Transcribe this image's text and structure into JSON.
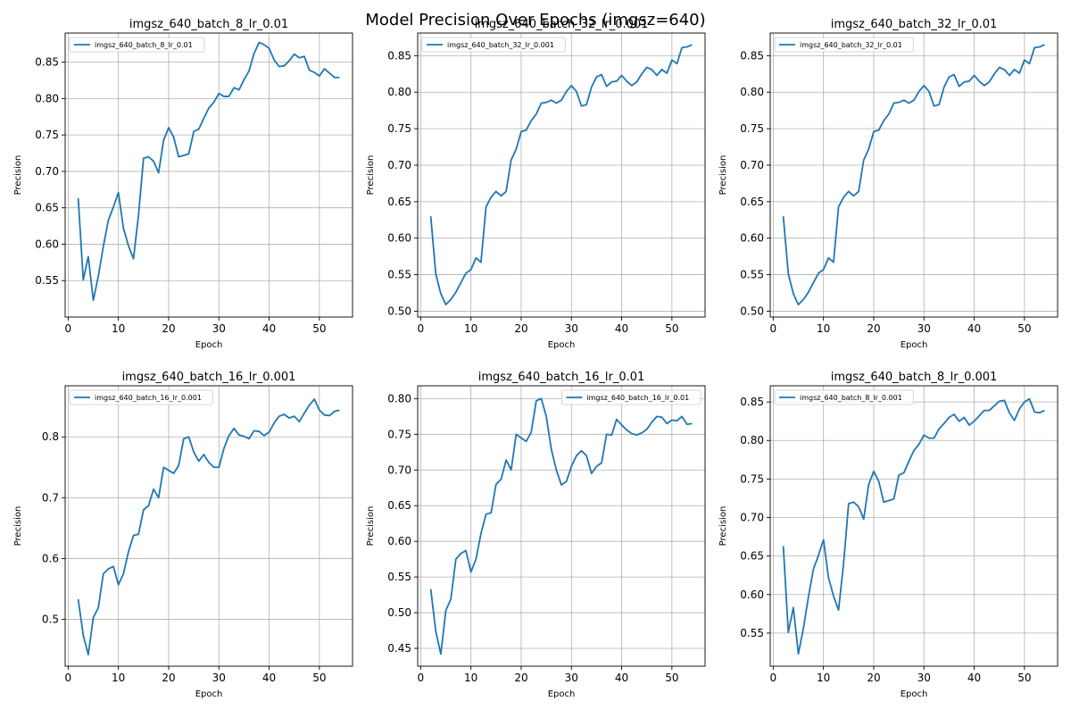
{
  "figure": {
    "suptitle": "Model Precision Over Epochs (imgsz=640)"
  },
  "colors": {
    "line": "#1f77b4",
    "grid": "#b0b0b0",
    "axis": "#000000"
  },
  "chart_data": [
    {
      "type": "line",
      "title": "imgsz_640_batch_8_lr_0.01",
      "xlabel": "Epoch",
      "ylabel": "Precision",
      "xlim": [
        -0.6,
        56.6
      ],
      "ylim": [
        0.5,
        0.89
      ],
      "xticks": [
        0,
        10,
        20,
        30,
        40,
        50
      ],
      "yticks": [
        0.55,
        0.6,
        0.65,
        0.7,
        0.75,
        0.8,
        0.85
      ],
      "ytick_labels": [
        "0.55",
        "0.60",
        "0.65",
        "0.70",
        "0.75",
        "0.80",
        "0.85"
      ],
      "grid": true,
      "legend_position": "top-left",
      "series": [
        {
          "name": "imgsz_640_batch_8_lr_0.01",
          "x": [
            2,
            3,
            4,
            5,
            6,
            7,
            8,
            9,
            10,
            11,
            12,
            13,
            14,
            15,
            16,
            17,
            18,
            19,
            20,
            21,
            22,
            23,
            24,
            25,
            26,
            27,
            28,
            29,
            30,
            31,
            32,
            33,
            34,
            35,
            36,
            37,
            38,
            39,
            40,
            41,
            42,
            43,
            44,
            45,
            46,
            47,
            48,
            49,
            50,
            51,
            52,
            53,
            54
          ],
          "y": [
            0.663,
            0.551,
            0.583,
            0.523,
            0.556,
            0.597,
            0.633,
            0.651,
            0.671,
            0.622,
            0.598,
            0.58,
            0.64,
            0.718,
            0.72,
            0.714,
            0.698,
            0.743,
            0.76,
            0.747,
            0.72,
            0.722,
            0.724,
            0.755,
            0.758,
            0.773,
            0.787,
            0.795,
            0.807,
            0.803,
            0.803,
            0.815,
            0.812,
            0.826,
            0.838,
            0.862,
            0.877,
            0.874,
            0.869,
            0.853,
            0.844,
            0.845,
            0.852,
            0.861,
            0.856,
            0.858,
            0.839,
            0.836,
            0.831,
            0.841,
            0.835,
            0.829,
            0.829
          ]
        }
      ]
    },
    {
      "type": "line",
      "title": "imgsz_640_batch_32_lr_0.001",
      "xlabel": "Epoch",
      "ylabel": "Precision",
      "xlim": [
        -0.6,
        56.6
      ],
      "ylim": [
        0.492,
        0.881
      ],
      "xticks": [
        0,
        10,
        20,
        30,
        40,
        50
      ],
      "yticks": [
        0.5,
        0.55,
        0.6,
        0.65,
        0.7,
        0.75,
        0.8,
        0.85
      ],
      "ytick_labels": [
        "0.50",
        "0.55",
        "0.60",
        "0.65",
        "0.70",
        "0.75",
        "0.80",
        "0.85"
      ],
      "grid": true,
      "legend_position": "top-left",
      "series": [
        {
          "name": "imgsz_640_batch_32_lr_0.001",
          "x": [
            2,
            3,
            4,
            5,
            6,
            7,
            8,
            9,
            10,
            11,
            12,
            13,
            14,
            15,
            16,
            17,
            18,
            19,
            20,
            21,
            22,
            23,
            24,
            25,
            26,
            27,
            28,
            29,
            30,
            31,
            32,
            33,
            34,
            35,
            36,
            37,
            38,
            39,
            40,
            41,
            42,
            43,
            44,
            45,
            46,
            47,
            48,
            49,
            50,
            51,
            52,
            53,
            54
          ],
          "y": [
            0.63,
            0.551,
            0.524,
            0.509,
            0.516,
            0.526,
            0.539,
            0.552,
            0.557,
            0.573,
            0.567,
            0.643,
            0.656,
            0.664,
            0.658,
            0.664,
            0.707,
            0.722,
            0.746,
            0.748,
            0.761,
            0.77,
            0.785,
            0.786,
            0.789,
            0.785,
            0.789,
            0.801,
            0.809,
            0.801,
            0.781,
            0.783,
            0.807,
            0.821,
            0.824,
            0.808,
            0.814,
            0.815,
            0.823,
            0.815,
            0.809,
            0.814,
            0.825,
            0.834,
            0.831,
            0.823,
            0.831,
            0.826,
            0.844,
            0.839,
            0.861,
            0.862,
            0.865
          ]
        }
      ]
    },
    {
      "type": "line",
      "title": "imgsz_640_batch_32_lr_0.01",
      "xlabel": "Epoch",
      "ylabel": "Precision",
      "xlim": [
        -0.6,
        56.6
      ],
      "ylim": [
        0.492,
        0.881
      ],
      "xticks": [
        0,
        10,
        20,
        30,
        40,
        50
      ],
      "yticks": [
        0.5,
        0.55,
        0.6,
        0.65,
        0.7,
        0.75,
        0.8,
        0.85
      ],
      "ytick_labels": [
        "0.50",
        "0.55",
        "0.60",
        "0.65",
        "0.70",
        "0.75",
        "0.80",
        "0.85"
      ],
      "grid": true,
      "legend_position": "top-left",
      "series": [
        {
          "name": "imgsz_640_batch_32_lr_0.01",
          "x": [
            2,
            3,
            4,
            5,
            6,
            7,
            8,
            9,
            10,
            11,
            12,
            13,
            14,
            15,
            16,
            17,
            18,
            19,
            20,
            21,
            22,
            23,
            24,
            25,
            26,
            27,
            28,
            29,
            30,
            31,
            32,
            33,
            34,
            35,
            36,
            37,
            38,
            39,
            40,
            41,
            42,
            43,
            44,
            45,
            46,
            47,
            48,
            49,
            50,
            51,
            52,
            53,
            54
          ],
          "y": [
            0.63,
            0.551,
            0.524,
            0.509,
            0.516,
            0.526,
            0.539,
            0.552,
            0.557,
            0.573,
            0.567,
            0.643,
            0.656,
            0.664,
            0.658,
            0.664,
            0.707,
            0.722,
            0.746,
            0.748,
            0.761,
            0.77,
            0.785,
            0.786,
            0.789,
            0.785,
            0.789,
            0.801,
            0.809,
            0.801,
            0.781,
            0.783,
            0.807,
            0.821,
            0.824,
            0.808,
            0.814,
            0.815,
            0.823,
            0.815,
            0.809,
            0.814,
            0.825,
            0.834,
            0.831,
            0.823,
            0.831,
            0.826,
            0.844,
            0.839,
            0.861,
            0.862,
            0.865
          ]
        }
      ]
    },
    {
      "type": "line",
      "title": "imgsz_640_batch_16_lr_0.001",
      "xlabel": "Epoch",
      "ylabel": "Precision",
      "xlim": [
        -0.6,
        56.6
      ],
      "ylim": [
        0.423,
        0.884
      ],
      "xticks": [
        0,
        10,
        20,
        30,
        40,
        50
      ],
      "yticks": [
        0.5,
        0.6,
        0.7,
        0.8
      ],
      "ytick_labels": [
        "0.5",
        "0.6",
        "0.7",
        "0.8"
      ],
      "grid": true,
      "legend_position": "top-left",
      "series": [
        {
          "name": "imgsz_640_batch_16_lr_0.001",
          "x": [
            2,
            3,
            4,
            5,
            6,
            7,
            8,
            9,
            10,
            11,
            12,
            13,
            14,
            15,
            16,
            17,
            18,
            19,
            20,
            21,
            22,
            23,
            24,
            25,
            26,
            27,
            28,
            29,
            30,
            31,
            32,
            33,
            34,
            35,
            36,
            37,
            38,
            39,
            40,
            41,
            42,
            43,
            44,
            45,
            46,
            47,
            48,
            49,
            50,
            51,
            52,
            53,
            54
          ],
          "y": [
            0.533,
            0.474,
            0.442,
            0.503,
            0.519,
            0.575,
            0.583,
            0.587,
            0.557,
            0.575,
            0.611,
            0.638,
            0.64,
            0.68,
            0.687,
            0.714,
            0.7,
            0.75,
            0.745,
            0.74,
            0.753,
            0.797,
            0.8,
            0.775,
            0.76,
            0.771,
            0.758,
            0.75,
            0.75,
            0.781,
            0.802,
            0.814,
            0.803,
            0.801,
            0.797,
            0.81,
            0.809,
            0.802,
            0.808,
            0.823,
            0.834,
            0.837,
            0.831,
            0.834,
            0.825,
            0.839,
            0.852,
            0.862,
            0.844,
            0.836,
            0.835,
            0.842,
            0.844
          ]
        }
      ]
    },
    {
      "type": "line",
      "title": "imgsz_640_batch_16_lr_0.01",
      "xlabel": "Epoch",
      "ylabel": "Precision",
      "xlim": [
        -0.6,
        56.6
      ],
      "ylim": [
        0.425,
        0.818
      ],
      "xticks": [
        0,
        10,
        20,
        30,
        40,
        50
      ],
      "yticks": [
        0.45,
        0.5,
        0.55,
        0.6,
        0.65,
        0.7,
        0.75,
        0.8
      ],
      "ytick_labels": [
        "0.45",
        "0.50",
        "0.55",
        "0.60",
        "0.65",
        "0.70",
        "0.75",
        "0.80"
      ],
      "grid": true,
      "legend_position": "top-right",
      "series": [
        {
          "name": "imgsz_640_batch_16_lr_0.01",
          "x": [
            2,
            3,
            4,
            5,
            6,
            7,
            8,
            9,
            10,
            11,
            12,
            13,
            14,
            15,
            16,
            17,
            18,
            19,
            20,
            21,
            22,
            23,
            24,
            25,
            26,
            27,
            28,
            29,
            30,
            31,
            32,
            33,
            34,
            35,
            36,
            37,
            38,
            39,
            40,
            41,
            42,
            43,
            44,
            45,
            46,
            47,
            48,
            49,
            50,
            51,
            52,
            53,
            54
          ],
          "y": [
            0.533,
            0.474,
            0.442,
            0.503,
            0.519,
            0.575,
            0.583,
            0.587,
            0.557,
            0.575,
            0.611,
            0.638,
            0.64,
            0.68,
            0.687,
            0.714,
            0.7,
            0.75,
            0.745,
            0.74,
            0.753,
            0.797,
            0.8,
            0.775,
            0.729,
            0.7,
            0.679,
            0.684,
            0.705,
            0.72,
            0.727,
            0.72,
            0.695,
            0.705,
            0.71,
            0.75,
            0.749,
            0.771,
            0.763,
            0.756,
            0.751,
            0.749,
            0.752,
            0.757,
            0.767,
            0.775,
            0.774,
            0.765,
            0.77,
            0.769,
            0.775,
            0.764,
            0.765
          ]
        }
      ]
    },
    {
      "type": "line",
      "title": "imgsz_640_batch_8_lr_0.001",
      "xlabel": "Epoch",
      "ylabel": "Precision",
      "xlim": [
        -0.6,
        56.6
      ],
      "ylim": [
        0.507,
        0.871
      ],
      "xticks": [
        0,
        10,
        20,
        30,
        40,
        50
      ],
      "yticks": [
        0.55,
        0.6,
        0.65,
        0.7,
        0.75,
        0.8,
        0.85
      ],
      "ytick_labels": [
        "0.55",
        "0.60",
        "0.65",
        "0.70",
        "0.75",
        "0.80",
        "0.85"
      ],
      "grid": true,
      "legend_position": "top-left",
      "series": [
        {
          "name": "imgsz_640_batch_8_lr_0.001",
          "x": [
            2,
            3,
            4,
            5,
            6,
            7,
            8,
            9,
            10,
            11,
            12,
            13,
            14,
            15,
            16,
            17,
            18,
            19,
            20,
            21,
            22,
            23,
            24,
            25,
            26,
            27,
            28,
            29,
            30,
            31,
            32,
            33,
            34,
            35,
            36,
            37,
            38,
            39,
            40,
            41,
            42,
            43,
            44,
            45,
            46,
            47,
            48,
            49,
            50,
            51,
            52,
            53,
            54
          ],
          "y": [
            0.663,
            0.551,
            0.583,
            0.523,
            0.556,
            0.597,
            0.633,
            0.651,
            0.671,
            0.622,
            0.598,
            0.58,
            0.64,
            0.718,
            0.72,
            0.714,
            0.698,
            0.743,
            0.76,
            0.747,
            0.72,
            0.722,
            0.724,
            0.755,
            0.758,
            0.773,
            0.787,
            0.795,
            0.807,
            0.803,
            0.803,
            0.815,
            0.822,
            0.83,
            0.834,
            0.825,
            0.83,
            0.82,
            0.825,
            0.832,
            0.839,
            0.839,
            0.845,
            0.851,
            0.852,
            0.836,
            0.826,
            0.841,
            0.85,
            0.854,
            0.837,
            0.836,
            0.839
          ]
        }
      ]
    }
  ]
}
